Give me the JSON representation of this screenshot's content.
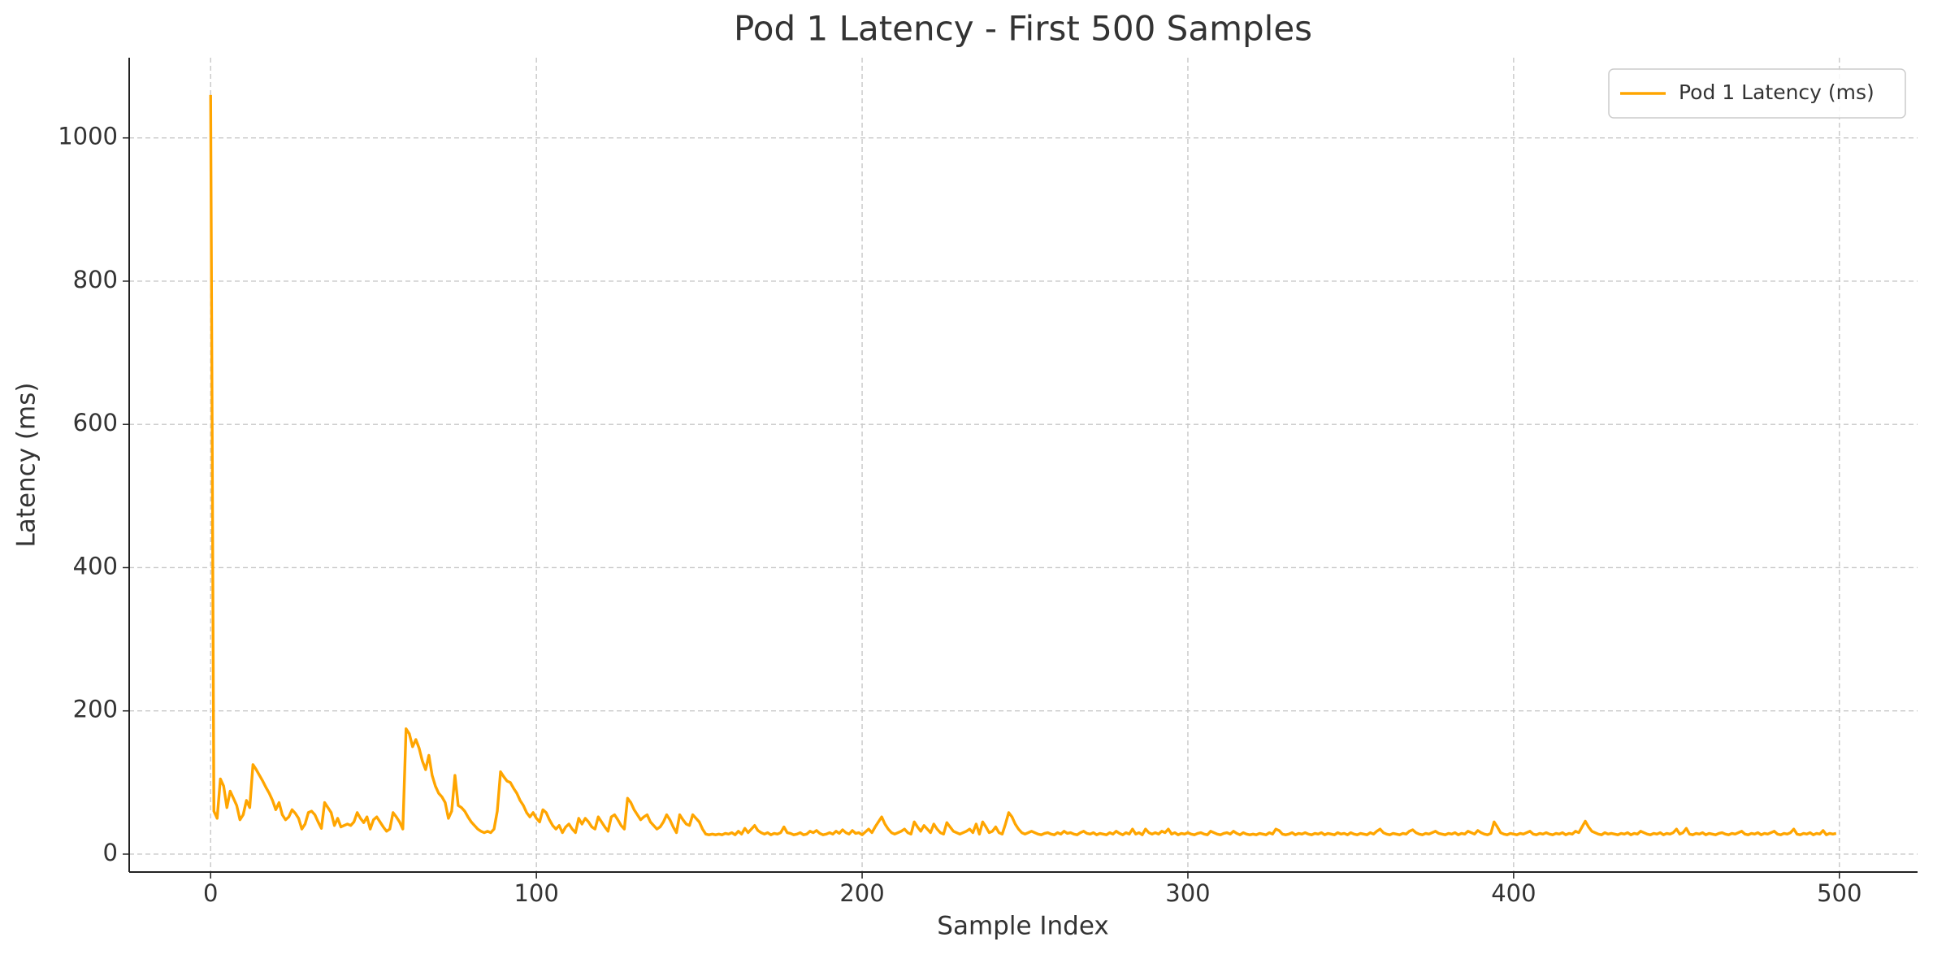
{
  "chart_data": {
    "type": "line",
    "title": "Pod 1 Latency - First 500 Samples",
    "xlabel": "Sample Index",
    "ylabel": "Latency (ms)",
    "xlim": [
      -25,
      524
    ],
    "ylim": [
      -25,
      1112
    ],
    "xticks": [
      0,
      100,
      200,
      300,
      400,
      500
    ],
    "yticks": [
      0,
      200,
      400,
      600,
      800,
      1000
    ],
    "grid": true,
    "legend": "upper right",
    "x": [
      0,
      1,
      2,
      3,
      4,
      5,
      6,
      7,
      8,
      9,
      10,
      11,
      12,
      13,
      14,
      15,
      16,
      17,
      18,
      19,
      20,
      21,
      22,
      23,
      24,
      25,
      26,
      27,
      28,
      29,
      30,
      31,
      32,
      33,
      34,
      35,
      36,
      37,
      38,
      39,
      40,
      41,
      42,
      43,
      44,
      45,
      46,
      47,
      48,
      49,
      50,
      51,
      52,
      53,
      54,
      55,
      56,
      57,
      58,
      59,
      60,
      61,
      62,
      63,
      64,
      65,
      66,
      67,
      68,
      69,
      70,
      71,
      72,
      73,
      74,
      75,
      76,
      77,
      78,
      79,
      80,
      81,
      82,
      83,
      84,
      85,
      86,
      87,
      88,
      89,
      90,
      91,
      92,
      93,
      94,
      95,
      96,
      97,
      98,
      99,
      100,
      101,
      102,
      103,
      104,
      105,
      106,
      107,
      108,
      109,
      110,
      111,
      112,
      113,
      114,
      115,
      116,
      117,
      118,
      119,
      120,
      121,
      122,
      123,
      124,
      125,
      126,
      127,
      128,
      129,
      130,
      131,
      132,
      133,
      134,
      135,
      136,
      137,
      138,
      139,
      140,
      141,
      142,
      143,
      144,
      145,
      146,
      147,
      148,
      149,
      150,
      151,
      152,
      153,
      154,
      155,
      156,
      157,
      158,
      159,
      160,
      161,
      162,
      163,
      164,
      165,
      166,
      167,
      168,
      169,
      170,
      171,
      172,
      173,
      174,
      175,
      176,
      177,
      178,
      179,
      180,
      181,
      182,
      183,
      184,
      185,
      186,
      187,
      188,
      189,
      190,
      191,
      192,
      193,
      194,
      195,
      196,
      197,
      198,
      199,
      200,
      201,
      202,
      203,
      204,
      205,
      206,
      207,
      208,
      209,
      210,
      211,
      212,
      213,
      214,
      215,
      216,
      217,
      218,
      219,
      220,
      221,
      222,
      223,
      224,
      225,
      226,
      227,
      228,
      229,
      230,
      231,
      232,
      233,
      234,
      235,
      236,
      237,
      238,
      239,
      240,
      241,
      242,
      243,
      244,
      245,
      246,
      247,
      248,
      249,
      250,
      251,
      252,
      253,
      254,
      255,
      256,
      257,
      258,
      259,
      260,
      261,
      262,
      263,
      264,
      265,
      266,
      267,
      268,
      269,
      270,
      271,
      272,
      273,
      274,
      275,
      276,
      277,
      278,
      279,
      280,
      281,
      282,
      283,
      284,
      285,
      286,
      287,
      288,
      289,
      290,
      291,
      292,
      293,
      294,
      295,
      296,
      297,
      298,
      299,
      300,
      301,
      302,
      303,
      304,
      305,
      306,
      307,
      308,
      309,
      310,
      311,
      312,
      313,
      314,
      315,
      316,
      317,
      318,
      319,
      320,
      321,
      322,
      323,
      324,
      325,
      326,
      327,
      328,
      329,
      330,
      331,
      332,
      333,
      334,
      335,
      336,
      337,
      338,
      339,
      340,
      341,
      342,
      343,
      344,
      345,
      346,
      347,
      348,
      349,
      350,
      351,
      352,
      353,
      354,
      355,
      356,
      357,
      358,
      359,
      360,
      361,
      362,
      363,
      364,
      365,
      366,
      367,
      368,
      369,
      370,
      371,
      372,
      373,
      374,
      375,
      376,
      377,
      378,
      379,
      380,
      381,
      382,
      383,
      384,
      385,
      386,
      387,
      388,
      389,
      390,
      391,
      392,
      393,
      394,
      395,
      396,
      397,
      398,
      399,
      400,
      401,
      402,
      403,
      404,
      405,
      406,
      407,
      408,
      409,
      410,
      411,
      412,
      413,
      414,
      415,
      416,
      417,
      418,
      419,
      420,
      421,
      422,
      423,
      424,
      425,
      426,
      427,
      428,
      429,
      430,
      431,
      432,
      433,
      434,
      435,
      436,
      437,
      438,
      439,
      440,
      441,
      442,
      443,
      444,
      445,
      446,
      447,
      448,
      449,
      450,
      451,
      452,
      453,
      454,
      455,
      456,
      457,
      458,
      459,
      460,
      461,
      462,
      463,
      464,
      465,
      466,
      467,
      468,
      469,
      470,
      471,
      472,
      473,
      474,
      475,
      476,
      477,
      478,
      479,
      480,
      481,
      482,
      483,
      484,
      485,
      486,
      487,
      488,
      489,
      490,
      491,
      492,
      493,
      494,
      495,
      496,
      497,
      498,
      499
    ],
    "series": [
      {
        "name": "Pod 1 Latency (ms)",
        "color": "#ffa500",
        "values": [
          1060,
          60,
          50,
          105,
          95,
          65,
          88,
          78,
          68,
          48,
          55,
          75,
          65,
          125,
          118,
          110,
          102,
          93,
          85,
          75,
          62,
          72,
          55,
          48,
          52,
          62,
          57,
          50,
          35,
          42,
          58,
          60,
          55,
          45,
          36,
          72,
          65,
          58,
          40,
          50,
          38,
          40,
          42,
          40,
          45,
          58,
          50,
          44,
          52,
          35,
          48,
          52,
          45,
          38,
          32,
          35,
          58,
          52,
          45,
          35,
          175,
          168,
          150,
          160,
          148,
          130,
          118,
          138,
          110,
          95,
          85,
          80,
          72,
          50,
          60,
          110,
          68,
          65,
          60,
          52,
          45,
          40,
          35,
          32,
          30,
          32,
          30,
          35,
          60,
          115,
          108,
          102,
          100,
          92,
          85,
          75,
          68,
          58,
          52,
          58,
          50,
          45,
          62,
          58,
          48,
          40,
          35,
          40,
          30,
          38,
          42,
          35,
          30,
          50,
          42,
          50,
          45,
          38,
          35,
          52,
          45,
          38,
          32,
          52,
          55,
          48,
          40,
          35,
          78,
          72,
          62,
          55,
          48,
          52,
          55,
          45,
          40,
          35,
          38,
          45,
          55,
          48,
          38,
          30,
          55,
          48,
          42,
          40,
          55,
          50,
          45,
          35,
          28,
          27,
          28,
          27,
          28,
          27,
          29,
          28,
          30,
          27,
          32,
          28,
          36,
          30,
          35,
          40,
          33,
          30,
          28,
          30,
          27,
          29,
          28,
          30,
          38,
          30,
          29,
          27,
          28,
          30,
          27,
          28,
          32,
          30,
          33,
          29,
          27,
          28,
          30,
          28,
          32,
          29,
          34,
          30,
          28,
          33,
          29,
          30,
          27,
          31,
          35,
          30,
          38,
          45,
          52,
          42,
          35,
          30,
          28,
          30,
          32,
          35,
          30,
          28,
          45,
          38,
          32,
          40,
          35,
          30,
          42,
          35,
          30,
          28,
          44,
          38,
          32,
          30,
          28,
          30,
          32,
          35,
          30,
          42,
          28,
          45,
          38,
          30,
          32,
          38,
          30,
          28,
          42,
          58,
          52,
          42,
          35,
          30,
          28,
          30,
          32,
          30,
          28,
          27,
          29,
          30,
          28,
          27,
          30,
          28,
          32,
          29,
          30,
          28,
          27,
          30,
          32,
          29,
          28,
          30,
          27,
          29,
          28,
          27,
          30,
          28,
          32,
          29,
          27,
          30,
          28,
          35,
          28,
          30,
          27,
          35,
          30,
          28,
          30,
          28,
          32,
          30,
          35,
          28,
          30,
          27,
          29,
          28,
          30,
          28,
          27,
          29,
          30,
          28,
          27,
          32,
          30,
          28,
          27,
          29,
          30,
          28,
          32,
          29,
          27,
          30,
          28,
          27,
          28,
          27,
          29,
          28,
          27,
          30,
          28,
          35,
          33,
          28,
          27,
          28,
          30,
          27,
          29,
          28,
          30,
          28,
          27,
          29,
          28,
          30,
          27,
          29,
          28,
          27,
          30,
          28,
          29,
          27,
          30,
          28,
          27,
          29,
          28,
          27,
          30,
          28,
          32,
          35,
          30,
          28,
          27,
          29,
          28,
          27,
          29,
          28,
          32,
          34,
          30,
          28,
          27,
          29,
          28,
          30,
          32,
          29,
          28,
          27,
          29,
          28,
          30,
          27,
          29,
          28,
          32,
          30,
          28,
          33,
          30,
          28,
          27,
          29,
          45,
          38,
          30,
          28,
          27,
          29,
          28,
          27,
          29,
          28,
          30,
          32,
          28,
          27,
          29,
          28,
          30,
          28,
          27,
          29,
          28,
          30,
          27,
          29,
          28,
          32,
          30,
          38,
          46,
          38,
          32,
          30,
          28,
          27,
          30,
          28,
          29,
          28,
          27,
          29,
          28,
          30,
          27,
          29,
          28,
          32,
          30,
          28,
          27,
          29,
          28,
          30,
          27,
          29,
          28,
          30,
          35,
          28,
          30,
          36,
          28,
          27,
          29,
          28,
          30,
          27,
          29,
          28,
          27,
          29,
          30,
          28,
          27,
          29,
          28,
          30,
          32,
          28,
          27,
          29,
          28,
          30,
          27,
          29,
          28,
          30,
          32,
          28,
          27,
          29,
          28,
          30,
          35,
          28,
          27,
          29,
          28,
          30,
          27,
          29,
          28,
          33,
          27,
          29,
          28,
          29
        ]
      }
    ]
  }
}
